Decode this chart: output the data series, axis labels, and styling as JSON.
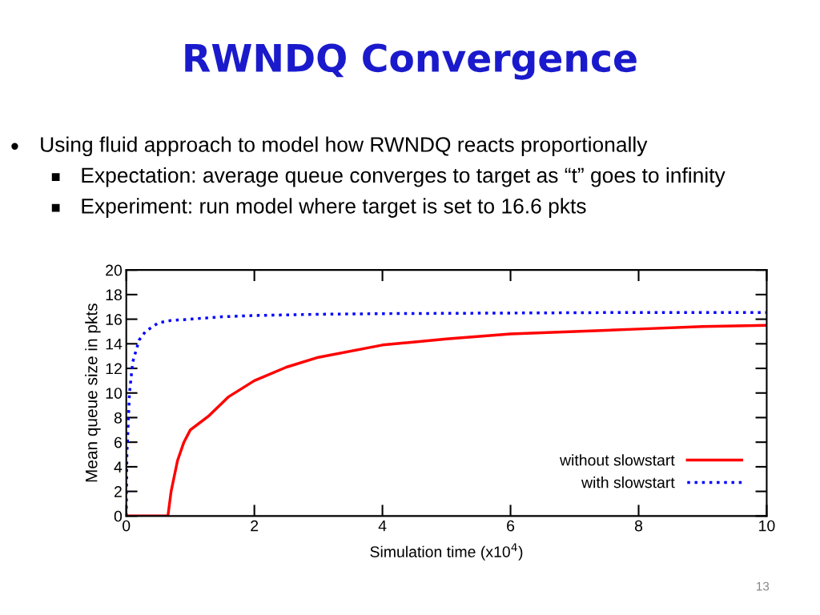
{
  "chart_data": {
    "type": "line",
    "title": "RWNDQ Convergence",
    "annotations": [
      "Using fluid approach to model how RWNDQ reacts proportionally",
      "Expectation: average queue converges to target as “t” goes to infinity",
      "Experiment: run model where target is set to 16.6 pkts",
      "13"
    ],
    "xlabel": "Simulation time (x10$^{4}$)",
    "ylabel": "Mean queue size in pkts",
    "series": [
      {
        "name": "without slowstart",
        "color": "#ff0000",
        "line_style": "solid",
        "x": [
          0,
          0.65,
          0.7,
          0.8,
          0.9,
          1.0,
          1.28,
          1.6,
          2.0,
          2.5,
          3.0,
          4.0,
          5.0,
          6.0,
          7.0,
          8.0,
          9.0,
          10.0
        ],
        "values": [
          0,
          0,
          2,
          4.5,
          6,
          7,
          8.1,
          9.7,
          11.0,
          12.1,
          12.9,
          13.9,
          14.4,
          14.8,
          15.0,
          15.2,
          15.4,
          15.5
        ]
      },
      {
        "name": "with slowstart",
        "color": "#0000ff",
        "line_style": "dotted",
        "x": [
          0,
          0.01,
          0.05,
          0.1,
          0.2,
          0.3,
          0.5,
          0.7,
          1.0,
          1.5,
          2.0,
          3.0,
          4.0,
          6.0,
          8.0,
          10.0
        ],
        "values": [
          0,
          5,
          10,
          12.5,
          14.3,
          15.0,
          15.7,
          15.9,
          16.0,
          16.2,
          16.3,
          16.4,
          16.45,
          16.5,
          16.55,
          16.55
        ]
      }
    ],
    "xlim": [
      0,
      10
    ],
    "xticks": [
      0,
      2,
      4,
      6,
      8,
      10
    ],
    "ylim": [
      0,
      20
    ],
    "yticks": [
      0,
      2,
      4,
      6,
      8,
      10,
      12,
      14,
      16,
      18,
      20
    ],
    "grid": false,
    "legend": "bottom right",
    "marker": "none"
  }
}
